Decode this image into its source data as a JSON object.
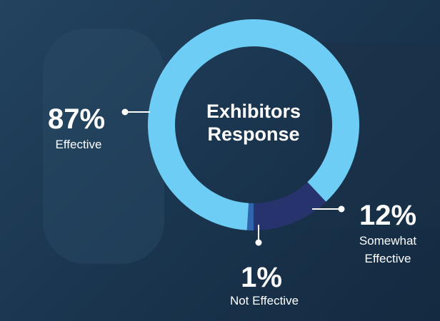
{
  "chart_data": {
    "type": "donut",
    "title": "Exhibitors Response",
    "categories": [
      "Effective",
      "Somewhat Effective",
      "Not Effective"
    ],
    "values": [
      87,
      12,
      1
    ],
    "value_labels": [
      "87%",
      "12%",
      "1%"
    ],
    "colors": [
      "#6dcdf5",
      "#27336c",
      "#2f66ae"
    ]
  }
}
